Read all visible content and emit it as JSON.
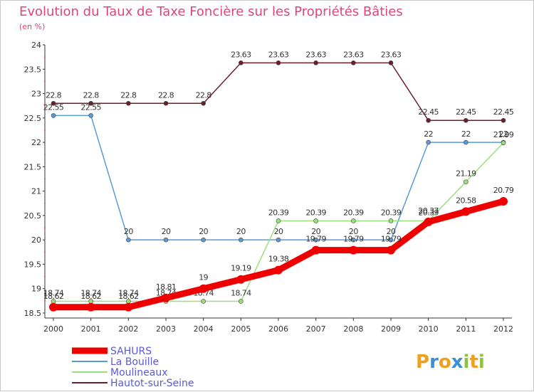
{
  "chart_data": {
    "type": "line",
    "title": "Evolution du Taux de Taxe Foncière sur les Propriétés Bâties",
    "subtitle": "(en %)",
    "categories": [
      "2000",
      "2001",
      "2002",
      "2003",
      "2004",
      "2005",
      "2006",
      "2007",
      "2008",
      "2009",
      "2010",
      "2011",
      "2012"
    ],
    "ylim": [
      18.5,
      24
    ],
    "yticks": [
      "18.5",
      "19",
      "19.5",
      "20",
      "20.5",
      "21",
      "21.5",
      "22",
      "22.5",
      "23",
      "23.5",
      "24"
    ],
    "grid": false,
    "legend": "bottom-left",
    "series": [
      {
        "name": "Hautot-sur-Seine",
        "color": "#6b1f2a",
        "values": [
          22.8,
          22.8,
          22.8,
          22.8,
          22.8,
          23.63,
          23.63,
          23.63,
          23.63,
          23.63,
          22.45,
          22.45,
          22.45
        ],
        "labels": [
          "22.8",
          "22.8",
          "22.8",
          "22.8",
          "22.8",
          "23.63",
          "23.63",
          "23.63",
          "23.63",
          "23.63",
          "22.45",
          "22.45",
          "22.45"
        ]
      },
      {
        "name": "La Bouille",
        "color": "#5b9bd5",
        "values": [
          22.55,
          22.55,
          20,
          20,
          20,
          20,
          20,
          20,
          20,
          20,
          22,
          22,
          22
        ],
        "labels": [
          "22.55",
          "22.55",
          "20",
          "20",
          "20",
          "20",
          "20",
          "20",
          "20",
          "20",
          "22",
          "22",
          "22"
        ]
      },
      {
        "name": "Moulineaux",
        "color": "#99e07a",
        "values": [
          18.74,
          18.74,
          18.74,
          18.74,
          18.74,
          18.74,
          20.39,
          20.39,
          20.39,
          20.39,
          20.39,
          21.19,
          21.99
        ],
        "labels": [
          "18.74",
          "18.74",
          "18.74",
          "18.74",
          "18.74",
          "18.74",
          "20.39",
          "20.39",
          "20.39",
          "20.39",
          "20.39",
          "21.19",
          "21.99"
        ]
      },
      {
        "name": "SAHURS",
        "color": "#ee0000",
        "values": [
          18.62,
          18.62,
          18.62,
          18.81,
          19,
          19.19,
          19.38,
          19.79,
          19.79,
          19.79,
          20.37,
          20.58,
          20.79
        ],
        "labels": [
          "18.62",
          "18.62",
          "18.62",
          "18.81",
          "19",
          "19.19",
          "19.38",
          "19.79",
          "19.79",
          "19.79",
          "20.37",
          "20.58",
          "20.79"
        ]
      }
    ],
    "legend_order": [
      "SAHURS",
      "La Bouille",
      "Moulineaux",
      "Hautot-sur-Seine"
    ]
  },
  "logo": {
    "letters": [
      "P",
      "r",
      "o",
      "x",
      "i",
      "t",
      "i"
    ],
    "colors": [
      "#f0a020",
      "#3a8fd8",
      "#f0a020",
      "#3a8fd8",
      "#8bc53f",
      "#f0a020",
      "#8bc53f"
    ]
  }
}
